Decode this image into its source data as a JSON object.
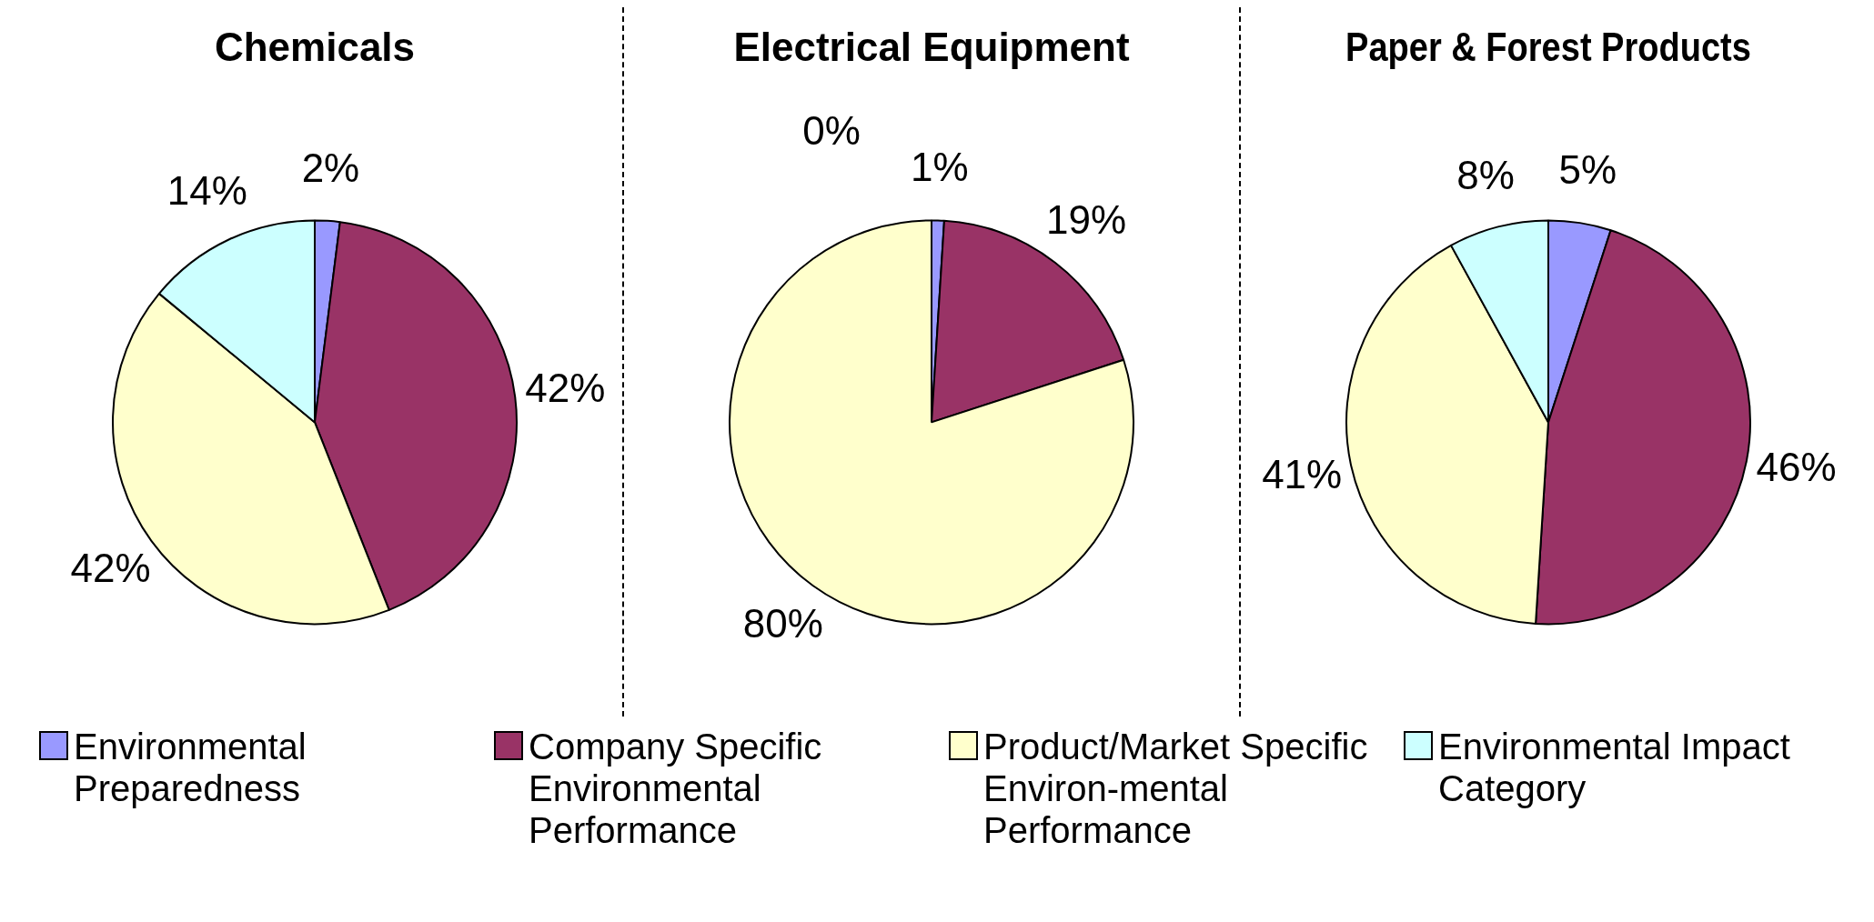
{
  "chart_data": [
    {
      "type": "pie",
      "title": "Chemicals",
      "categories": [
        "Environmental Preparedness",
        "Company Specific Environmental Performance",
        "Product/Market Specific Environ-mental Performance",
        "Environmental Impact Category"
      ],
      "values": [
        2,
        42,
        42,
        14
      ],
      "value_labels": [
        "2%",
        "42%",
        "42%",
        "14%"
      ],
      "colors": [
        "#9999ff",
        "#993366",
        "#ffffcc",
        "#ccffff"
      ],
      "legend": "bottom"
    },
    {
      "type": "pie",
      "title": "Electrical Equipment",
      "categories": [
        null,
        null,
        null,
        null
      ],
      "values": [
        1,
        19,
        80,
        0
      ],
      "value_labels": [
        "1%",
        "19%",
        "80%",
        "0%"
      ],
      "colors": [
        "#9999ff",
        "#993366",
        "#ffffcc",
        "#ccffff"
      ]
    },
    {
      "type": "pie",
      "title": "Paper & Forest Products",
      "categories": [
        null,
        null,
        null,
        null
      ],
      "values": [
        5,
        46,
        41,
        8
      ],
      "value_labels": [
        "5%",
        "46%",
        "41%",
        "8%"
      ],
      "colors": [
        "#9999ff",
        "#993366",
        "#ffffcc",
        "#ccffff"
      ]
    }
  ]
}
